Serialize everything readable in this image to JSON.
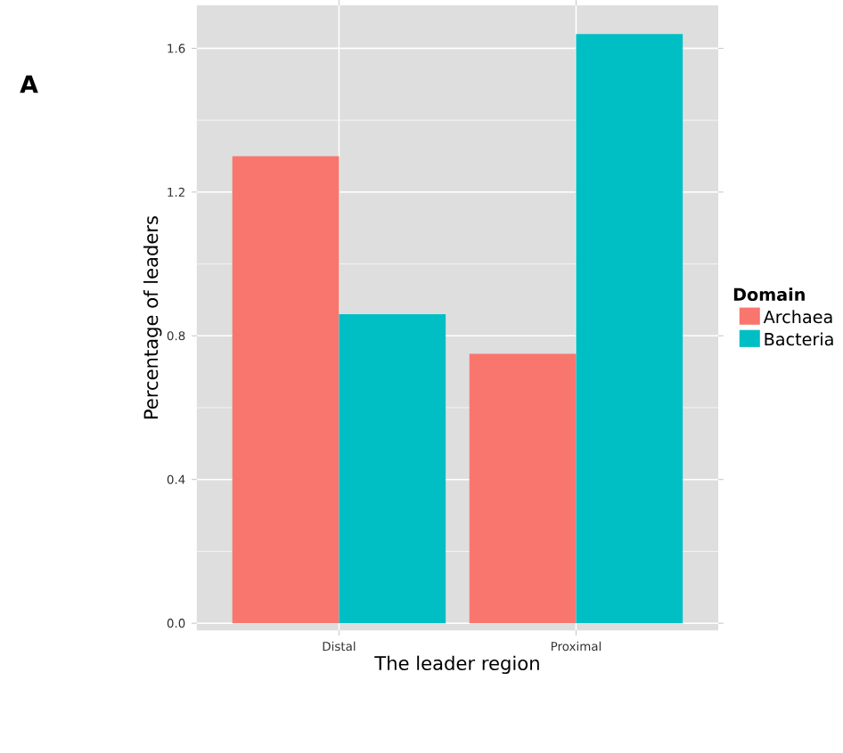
{
  "chart_data": {
    "type": "bar",
    "xlabel": "The leader region",
    "ylabel": "Percentage of leaders",
    "legend_title": "Domain",
    "categories": [
      "Distal",
      "Proximal"
    ],
    "series": [
      {
        "name": "Archaea",
        "color": "#f8766d",
        "values": [
          1.3,
          0.75
        ]
      },
      {
        "name": "Bacteria",
        "color": "#00bfc4",
        "values": [
          0.86,
          1.64
        ]
      }
    ],
    "ylim": [
      -0.02,
      1.72
    ],
    "yticks": [
      {
        "value": 0,
        "label": "0.0"
      },
      0.4,
      0.8,
      1.2,
      1.6
    ],
    "grid": true,
    "legend": "right",
    "annotations": [
      "A"
    ]
  }
}
